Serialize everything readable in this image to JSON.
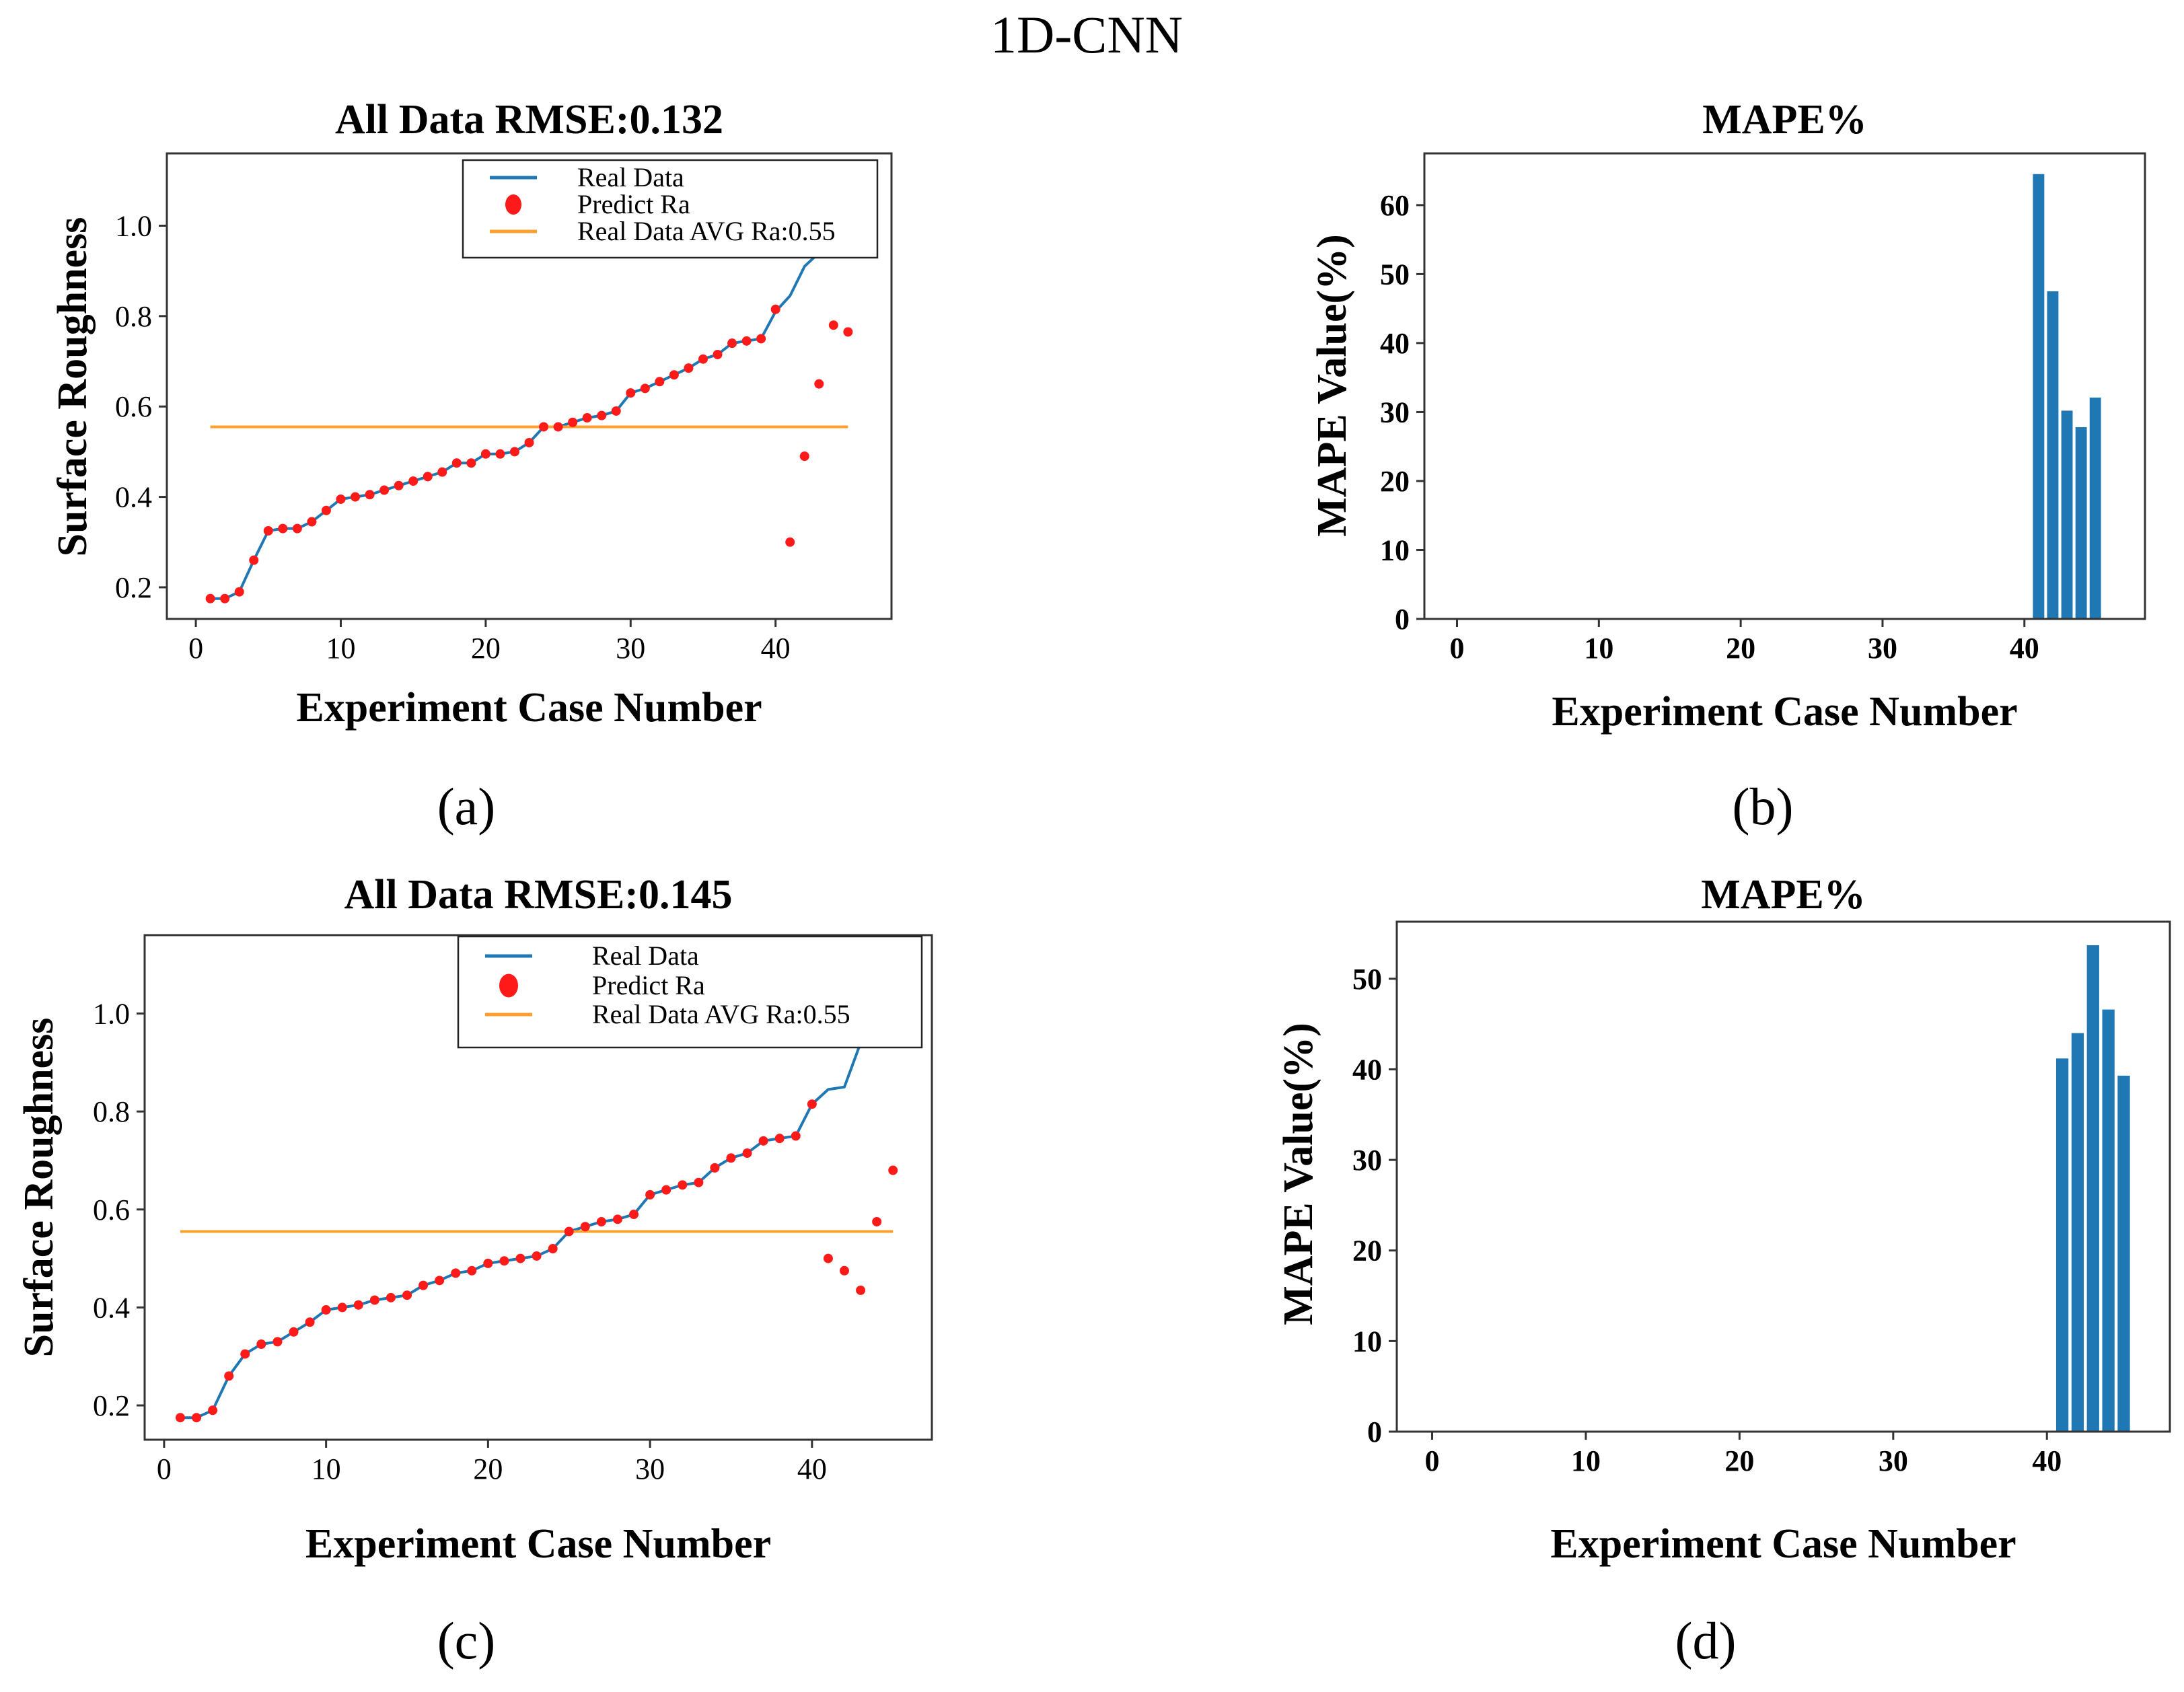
{
  "figure": {
    "title": "1D-CNN",
    "panel_labels": [
      "(a)",
      "(b)",
      "(c)",
      "(d)"
    ]
  },
  "colors": {
    "real_line": "#1f77b4",
    "predict_dot": "#ff1a1a",
    "avg_line": "#ff9f2e",
    "bar": "#1f77b4",
    "axis": "#333333"
  },
  "chart_data": [
    {
      "id": "a",
      "type": "line",
      "title": "All Data RMSE:0.132",
      "xlabel": "Experiment Case Number",
      "ylabel": "Surface Roughness",
      "xlim": [
        -2,
        48
      ],
      "ylim": [
        0.13,
        1.16
      ],
      "xticks": [
        0,
        10,
        20,
        30,
        40
      ],
      "xtick_labels": [
        "0",
        "10",
        "20",
        "30",
        "40"
      ],
      "yticks": [
        0.2,
        0.4,
        0.6,
        0.8,
        1.0
      ],
      "ytick_labels": [
        "0.2",
        "0.4",
        "0.6",
        "0.8",
        "1.0"
      ],
      "legend": {
        "position": "top-right",
        "entries": [
          "Real Data",
          "Predict Ra",
          "Real Data AVG Ra:0.55"
        ]
      },
      "series": [
        {
          "name": "Real Data",
          "kind": "line",
          "x": [
            1,
            2,
            3,
            4,
            5,
            6,
            7,
            8,
            9,
            10,
            11,
            12,
            13,
            14,
            15,
            16,
            17,
            18,
            19,
            20,
            21,
            22,
            23,
            24,
            25,
            26,
            27,
            28,
            29,
            30,
            31,
            32,
            33,
            34,
            35,
            36,
            37,
            38,
            39,
            40,
            41,
            42,
            43
          ],
          "y": [
            0.175,
            0.175,
            0.19,
            0.26,
            0.325,
            0.33,
            0.33,
            0.345,
            0.37,
            0.395,
            0.4,
            0.405,
            0.415,
            0.425,
            0.435,
            0.445,
            0.455,
            0.475,
            0.475,
            0.495,
            0.495,
            0.5,
            0.52,
            0.555,
            0.555,
            0.565,
            0.575,
            0.58,
            0.59,
            0.63,
            0.64,
            0.655,
            0.67,
            0.685,
            0.705,
            0.715,
            0.74,
            0.745,
            0.75,
            0.81,
            0.845,
            0.91,
            0.94
          ]
        },
        {
          "name": "Predict Ra",
          "kind": "scatter",
          "x": [
            1,
            2,
            3,
            4,
            5,
            6,
            7,
            8,
            9,
            10,
            11,
            12,
            13,
            14,
            15,
            16,
            17,
            18,
            19,
            20,
            21,
            22,
            23,
            24,
            25,
            26,
            27,
            28,
            29,
            30,
            31,
            32,
            33,
            34,
            35,
            36,
            37,
            38,
            39,
            40,
            41,
            42,
            43,
            44,
            45
          ],
          "y": [
            0.175,
            0.175,
            0.19,
            0.26,
            0.325,
            0.33,
            0.33,
            0.345,
            0.37,
            0.395,
            0.4,
            0.405,
            0.415,
            0.425,
            0.435,
            0.445,
            0.455,
            0.475,
            0.475,
            0.495,
            0.495,
            0.5,
            0.52,
            0.555,
            0.555,
            0.565,
            0.575,
            0.58,
            0.59,
            0.63,
            0.64,
            0.655,
            0.67,
            0.685,
            0.705,
            0.715,
            0.74,
            0.745,
            0.75,
            0.815,
            0.3,
            0.49,
            0.65,
            0.78,
            0.765
          ]
        },
        {
          "name": "Real Data AVG Ra:0.55",
          "kind": "hline",
          "x": [
            1,
            45
          ],
          "y": [
            0.555,
            0.555
          ]
        }
      ]
    },
    {
      "id": "b",
      "type": "bar",
      "title": "MAPE%",
      "xlabel": "Experiment Case Number",
      "ylabel": "MAPE Value(%)",
      "xlim": [
        -2.3,
        48.5
      ],
      "ylim": [
        0,
        67.5
      ],
      "xticks": [
        0,
        10,
        20,
        30,
        40
      ],
      "xtick_labels": [
        "0",
        "10",
        "20",
        "30",
        "40"
      ],
      "yticks": [
        0,
        10,
        20,
        30,
        40,
        50,
        60
      ],
      "ytick_labels": [
        "0",
        "10",
        "20",
        "30",
        "40",
        "50",
        "60"
      ],
      "x": [
        41,
        42,
        43,
        44,
        45
      ],
      "values": [
        64.5,
        47.5,
        30.2,
        27.8,
        32.1
      ]
    },
    {
      "id": "c",
      "type": "line",
      "title": "All Data RMSE:0.145",
      "xlabel": "Experiment Case Number",
      "ylabel": "Surface Roughness",
      "xlim": [
        -1.2,
        47.4
      ],
      "ylim": [
        0.13,
        1.16
      ],
      "xticks": [
        0,
        10,
        20,
        30,
        40
      ],
      "xtick_labels": [
        "0",
        "10",
        "20",
        "30",
        "40"
      ],
      "yticks": [
        0.2,
        0.4,
        0.6,
        0.8,
        1.0
      ],
      "ytick_labels": [
        "0.2",
        "0.4",
        "0.6",
        "0.8",
        "1.0"
      ],
      "legend": {
        "position": "top-right",
        "entries": [
          "Real Data",
          "Predict Ra",
          "Real Data AVG Ra:0.55"
        ]
      },
      "series": [
        {
          "name": "Real Data",
          "kind": "line",
          "x": [
            1,
            2,
            3,
            4,
            5,
            6,
            7,
            8,
            9,
            10,
            11,
            12,
            13,
            14,
            15,
            16,
            17,
            18,
            19,
            20,
            21,
            22,
            23,
            24,
            25,
            26,
            27,
            28,
            29,
            30,
            31,
            32,
            33,
            34,
            35,
            36,
            37,
            38,
            39,
            40,
            41,
            42,
            43
          ],
          "y": [
            0.175,
            0.175,
            0.19,
            0.26,
            0.305,
            0.325,
            0.33,
            0.35,
            0.37,
            0.395,
            0.4,
            0.405,
            0.415,
            0.42,
            0.425,
            0.445,
            0.455,
            0.47,
            0.475,
            0.49,
            0.495,
            0.5,
            0.505,
            0.52,
            0.555,
            0.565,
            0.575,
            0.58,
            0.59,
            0.63,
            0.64,
            0.65,
            0.655,
            0.685,
            0.705,
            0.715,
            0.74,
            0.745,
            0.75,
            0.815,
            0.845,
            0.85,
            0.94
          ]
        },
        {
          "name": "Predict Ra",
          "kind": "scatter",
          "x": [
            1,
            2,
            3,
            4,
            5,
            6,
            7,
            8,
            9,
            10,
            11,
            12,
            13,
            14,
            15,
            16,
            17,
            18,
            19,
            20,
            21,
            22,
            23,
            24,
            25,
            26,
            27,
            28,
            29,
            30,
            31,
            32,
            33,
            34,
            35,
            36,
            37,
            38,
            39,
            40,
            41,
            42,
            43,
            44,
            45
          ],
          "y": [
            0.175,
            0.175,
            0.19,
            0.26,
            0.305,
            0.325,
            0.33,
            0.35,
            0.37,
            0.395,
            0.4,
            0.405,
            0.415,
            0.42,
            0.425,
            0.445,
            0.455,
            0.47,
            0.475,
            0.49,
            0.495,
            0.5,
            0.505,
            0.52,
            0.555,
            0.565,
            0.575,
            0.58,
            0.59,
            0.63,
            0.64,
            0.65,
            0.655,
            0.685,
            0.705,
            0.715,
            0.74,
            0.745,
            0.75,
            0.815,
            0.5,
            0.475,
            0.435,
            0.575,
            0.68
          ]
        },
        {
          "name": "Real Data AVG Ra:0.55",
          "kind": "hline",
          "x": [
            1,
            45
          ],
          "y": [
            0.555,
            0.555
          ]
        }
      ]
    },
    {
      "id": "d",
      "type": "bar",
      "title": "MAPE%",
      "xlabel": "Experiment Case Number",
      "ylabel": "MAPE Value(%)",
      "xlim": [
        -2.3,
        48
      ],
      "ylim": [
        0,
        56.3
      ],
      "xticks": [
        0,
        10,
        20,
        30,
        40
      ],
      "xtick_labels": [
        "0",
        "10",
        "20",
        "30",
        "40"
      ],
      "yticks": [
        0,
        10,
        20,
        30,
        40,
        50
      ],
      "ytick_labels": [
        "0",
        "10",
        "20",
        "30",
        "40",
        "50"
      ],
      "x": [
        41,
        42,
        43,
        44,
        45
      ],
      "values": [
        41.2,
        44.0,
        53.7,
        46.6,
        39.3
      ]
    }
  ]
}
